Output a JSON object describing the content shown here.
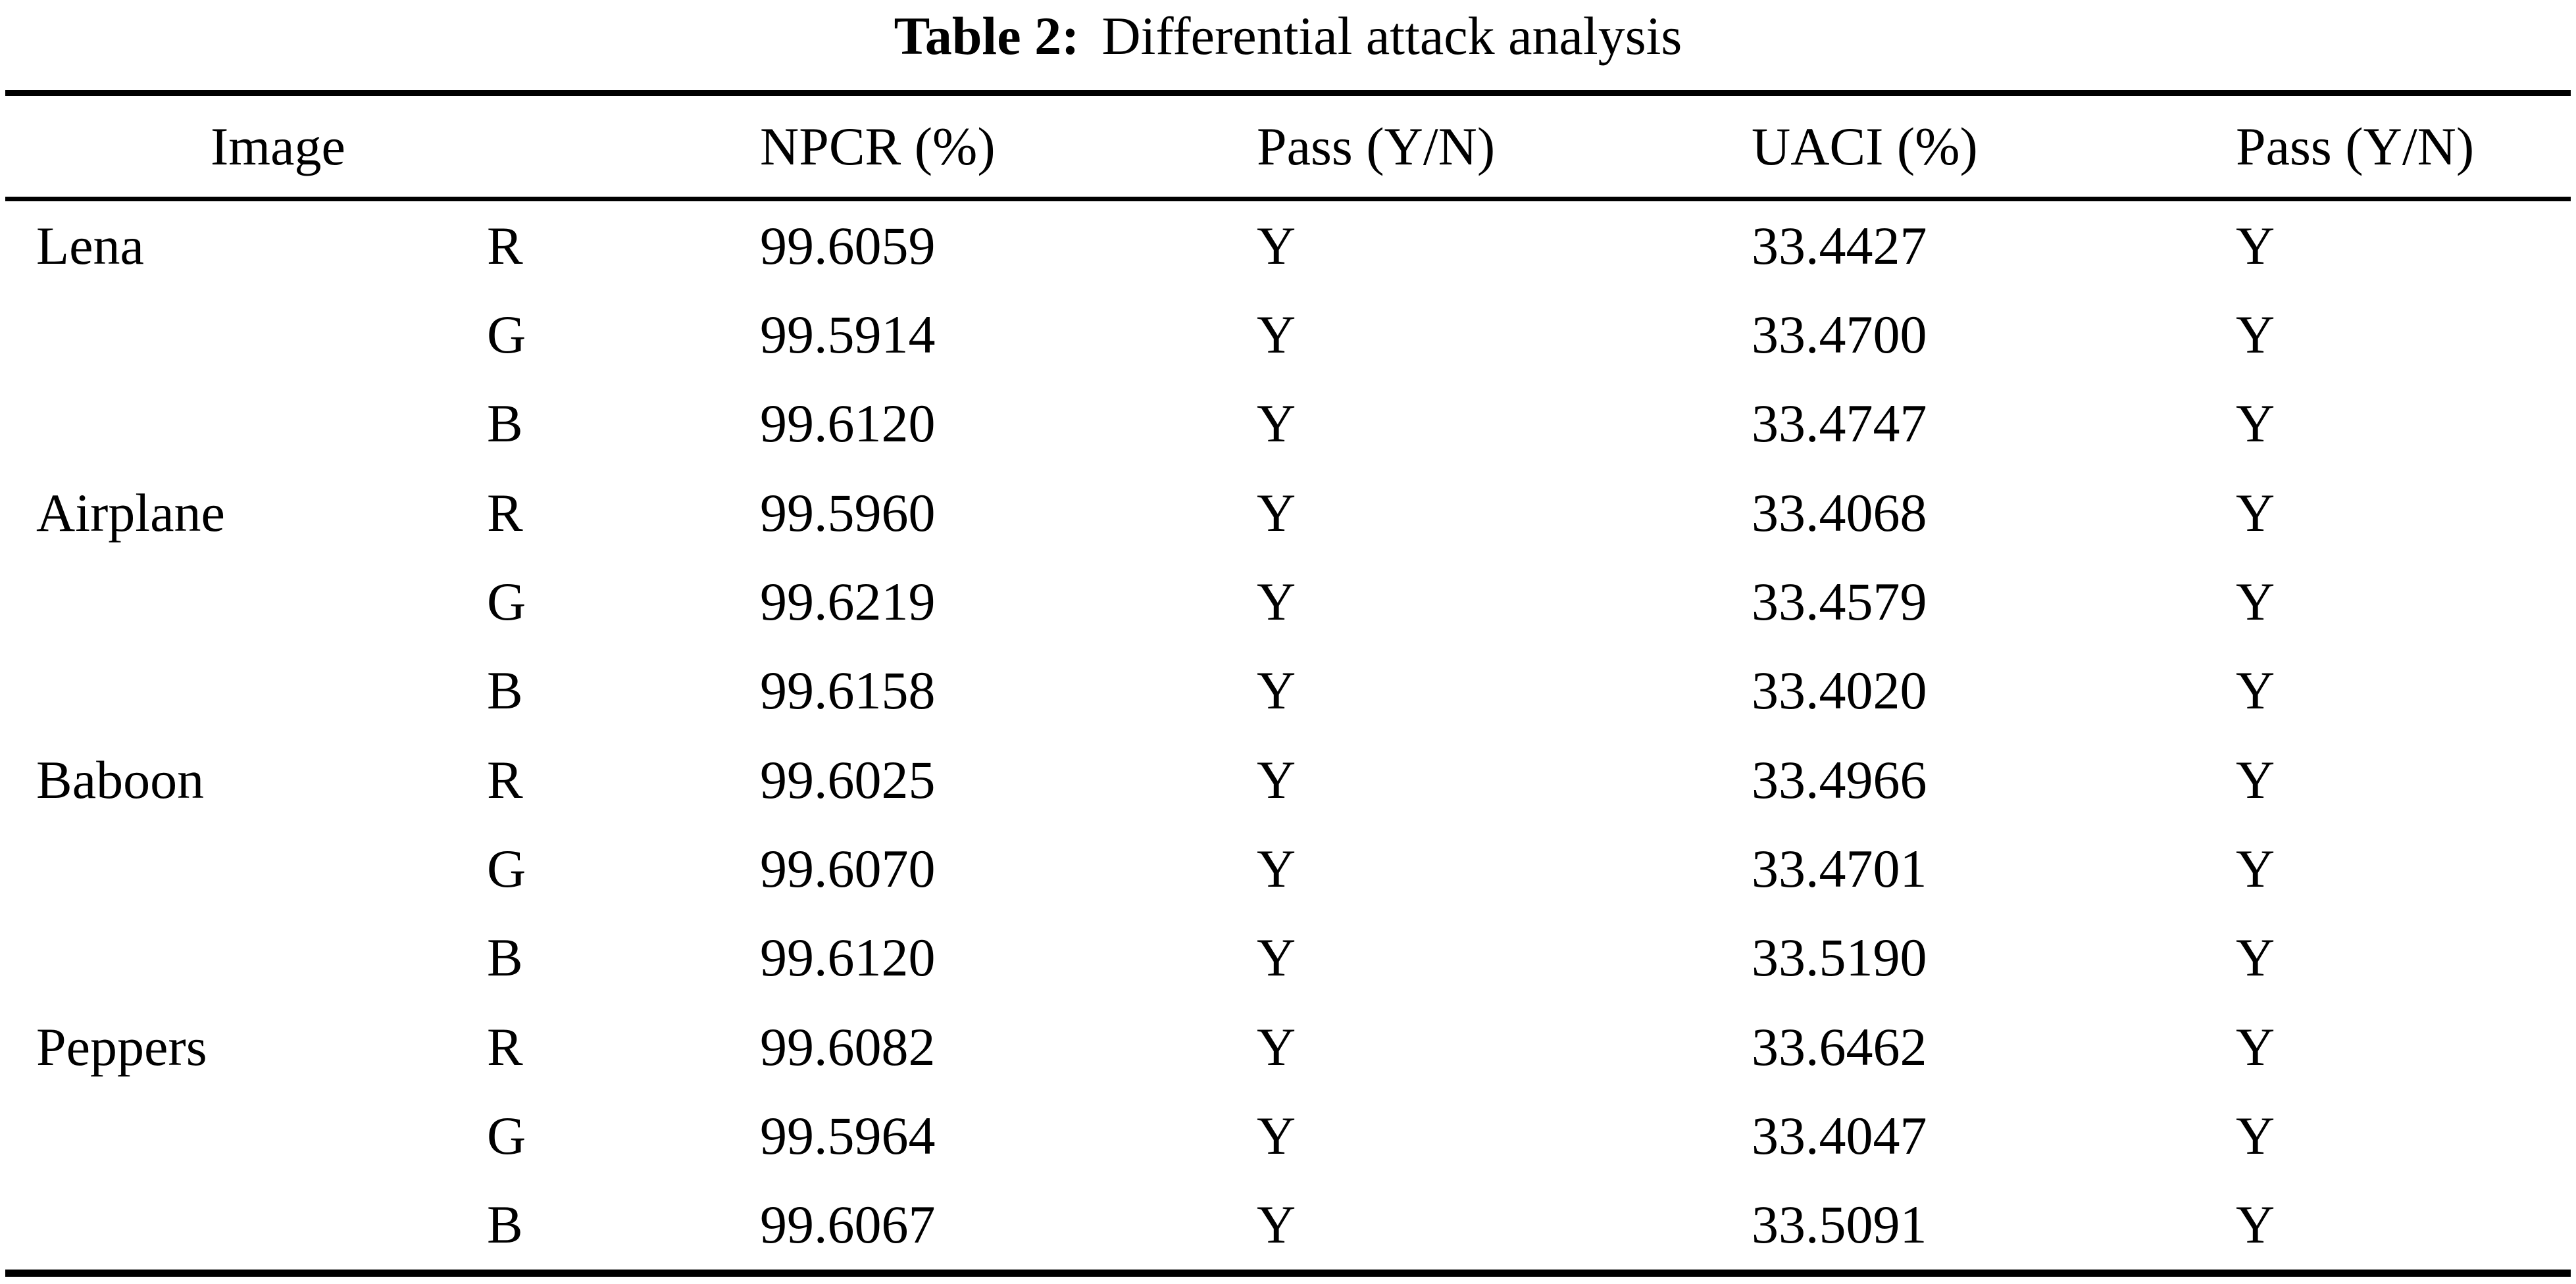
{
  "caption": {
    "label": "Table 2:",
    "text": "Differential attack analysis"
  },
  "table": {
    "header": {
      "image": "Image",
      "npcr": "NPCR (%)",
      "npcr_pass": "Pass (Y/N)",
      "uaci": "UACI (%)",
      "uaci_pass": "Pass (Y/N)"
    },
    "rows": [
      {
        "image": "Lena",
        "channel": "R",
        "npcr": "99.6059",
        "npcr_pass": "Y",
        "uaci": "33.4427",
        "uaci_pass": "Y"
      },
      {
        "image": "",
        "channel": "G",
        "npcr": "99.5914",
        "npcr_pass": "Y",
        "uaci": "33.4700",
        "uaci_pass": "Y"
      },
      {
        "image": "",
        "channel": "B",
        "npcr": "99.6120",
        "npcr_pass": "Y",
        "uaci": "33.4747",
        "uaci_pass": "Y"
      },
      {
        "image": "Airplane",
        "channel": "R",
        "npcr": "99.5960",
        "npcr_pass": "Y",
        "uaci": "33.4068",
        "uaci_pass": "Y"
      },
      {
        "image": "",
        "channel": "G",
        "npcr": "99.6219",
        "npcr_pass": "Y",
        "uaci": "33.4579",
        "uaci_pass": "Y"
      },
      {
        "image": "",
        "channel": "B",
        "npcr": "99.6158",
        "npcr_pass": "Y",
        "uaci": "33.4020",
        "uaci_pass": "Y"
      },
      {
        "image": "Baboon",
        "channel": "R",
        "npcr": "99.6025",
        "npcr_pass": "Y",
        "uaci": "33.4966",
        "uaci_pass": "Y"
      },
      {
        "image": "",
        "channel": "G",
        "npcr": "99.6070",
        "npcr_pass": "Y",
        "uaci": "33.4701",
        "uaci_pass": "Y"
      },
      {
        "image": "",
        "channel": "B",
        "npcr": "99.6120",
        "npcr_pass": "Y",
        "uaci": "33.5190",
        "uaci_pass": "Y"
      },
      {
        "image": "Peppers",
        "channel": "R",
        "npcr": "99.6082",
        "npcr_pass": "Y",
        "uaci": "33.6462",
        "uaci_pass": "Y"
      },
      {
        "image": "",
        "channel": "G",
        "npcr": "99.5964",
        "npcr_pass": "Y",
        "uaci": "33.4047",
        "uaci_pass": "Y"
      },
      {
        "image": "",
        "channel": "B",
        "npcr": "99.6067",
        "npcr_pass": "Y",
        "uaci": "33.5091",
        "uaci_pass": "Y"
      }
    ]
  }
}
